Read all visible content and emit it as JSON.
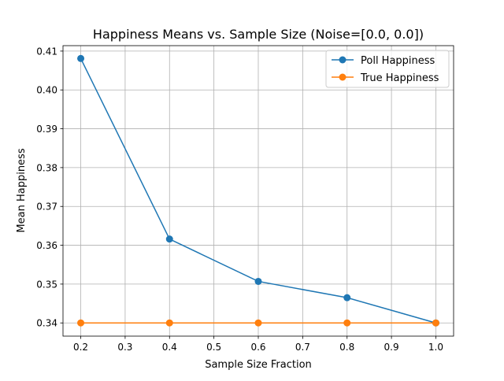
{
  "chart_data": {
    "type": "line",
    "title": "Happiness Means vs. Sample Size (Noise=[0.0, 0.0])",
    "xlabel": "Sample Size Fraction",
    "ylabel": "Mean Happiness",
    "xlim": [
      0.16,
      1.04
    ],
    "ylim": [
      0.3366,
      0.4114
    ],
    "xticks": [
      0.2,
      0.3,
      0.4,
      0.5,
      0.6,
      0.7,
      0.8,
      0.9,
      1.0
    ],
    "xtick_labels": [
      "0.2",
      "0.3",
      "0.4",
      "0.5",
      "0.6",
      "0.7",
      "0.8",
      "0.9",
      "1.0"
    ],
    "yticks": [
      0.34,
      0.35,
      0.36,
      0.37,
      0.38,
      0.39,
      0.4,
      0.41
    ],
    "ytick_labels": [
      "0.34",
      "0.35",
      "0.36",
      "0.37",
      "0.38",
      "0.39",
      "0.40",
      "0.41"
    ],
    "grid": true,
    "legend_position": "top-right",
    "x": [
      0.2,
      0.4,
      0.6,
      0.8,
      1.0
    ],
    "series": [
      {
        "name": "Poll Happiness",
        "color": "#1f77b4",
        "values": [
          0.4081,
          0.3616,
          0.3507,
          0.3465,
          0.34
        ]
      },
      {
        "name": "True Happiness",
        "color": "#ff7f0e",
        "values": [
          0.34,
          0.34,
          0.34,
          0.34,
          0.34
        ]
      }
    ]
  }
}
